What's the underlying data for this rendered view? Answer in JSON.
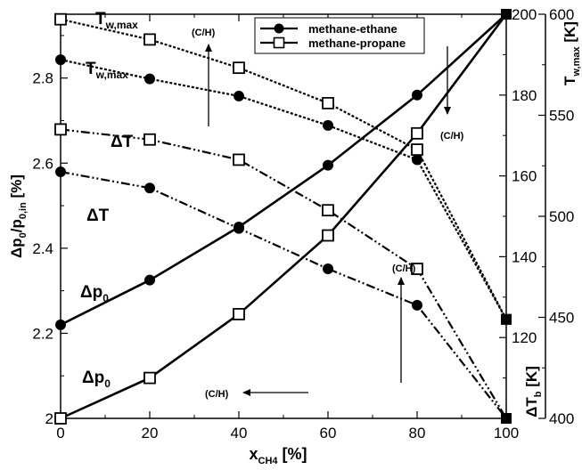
{
  "chart_data": {
    "type": "line",
    "x": [
      0,
      20,
      40,
      60,
      80,
      100
    ],
    "xlabel": {
      "main": "x",
      "sub": "CH4",
      "unit": " [%]"
    },
    "xlim": [
      0,
      100
    ],
    "xticks": [
      "0",
      "20",
      "40",
      "60",
      "80",
      "100"
    ],
    "axes": {
      "left": {
        "label_parts": [
          "Δp",
          "0",
          "/p",
          "0,in",
          " [%]"
        ],
        "range": [
          2.0,
          2.95
        ],
        "ticks": [
          "2",
          "2.2",
          "2.4",
          "2.6",
          "2.8"
        ]
      },
      "right_inner": {
        "label_parts": [
          "ΔT",
          "b",
          " [K]"
        ],
        "range": [
          100,
          200
        ],
        "ticks": [
          "120",
          "140",
          "160",
          "180",
          "200"
        ]
      },
      "right_outer": {
        "label_parts": [
          "T",
          "w,max",
          " [K]"
        ],
        "range": [
          400,
          600
        ],
        "ticks": [
          "400",
          "450",
          "500",
          "550",
          "600"
        ]
      }
    },
    "legend": {
      "position": "top-right",
      "entries": [
        {
          "name": "methane-ethane",
          "marker": "filled-circle"
        },
        {
          "name": "methane-propane",
          "marker": "open-square"
        }
      ]
    },
    "series": [
      {
        "group": "Tw,max",
        "mixture": "methane-ethane",
        "axis": "right_outer",
        "style": "dotted",
        "y": [
          577.5,
          568,
          559.5,
          545,
          528,
          449
        ]
      },
      {
        "group": "Tw,max",
        "mixture": "methane-propane",
        "axis": "right_outer",
        "style": "dotted",
        "y": [
          597.5,
          587.5,
          573.5,
          556,
          533,
          449
        ]
      },
      {
        "group": "ΔT",
        "mixture": "methane-ethane",
        "axis": "right_inner",
        "style": "dash-dot",
        "y": [
          161,
          157,
          147,
          137,
          128,
          100
        ]
      },
      {
        "group": "ΔT",
        "mixture": "methane-propane",
        "axis": "right_inner",
        "style": "dash-dot",
        "y": [
          171.5,
          169,
          164,
          151.5,
          137,
          100
        ]
      },
      {
        "group": "Δp0",
        "mixture": "methane-ethane",
        "axis": "left",
        "style": "solid",
        "y": [
          2.22,
          2.325,
          2.45,
          2.595,
          2.76,
          2.95
        ]
      },
      {
        "group": "Δp0",
        "mixture": "methane-propane",
        "axis": "left",
        "style": "solid",
        "y": [
          2.0,
          2.095,
          2.245,
          2.43,
          2.67,
          2.95
        ]
      }
    ],
    "annotations": [
      {
        "parts": [
          "T",
          "w,max"
        ],
        "near": "Tw,max methane-propane"
      },
      {
        "parts": [
          "T",
          "w,max"
        ],
        "near": "Tw,max methane-ethane"
      },
      {
        "parts": [
          "ΔT"
        ],
        "near": "ΔT methane-propane"
      },
      {
        "parts": [
          "ΔT"
        ],
        "near": "ΔT methane-ethane"
      },
      {
        "parts": [
          "Δp",
          "0"
        ],
        "near": "Δp0 methane-ethane"
      },
      {
        "parts": [
          "Δp",
          "0"
        ],
        "near": "Δp0 methane-propane"
      }
    ],
    "arrows": [
      {
        "text": "(C/H)",
        "direction": "up"
      },
      {
        "text": "(C/H)",
        "direction": "down"
      },
      {
        "text": "(C/H)",
        "direction": "up"
      },
      {
        "text": "(C/H)",
        "direction": "left"
      }
    ]
  }
}
